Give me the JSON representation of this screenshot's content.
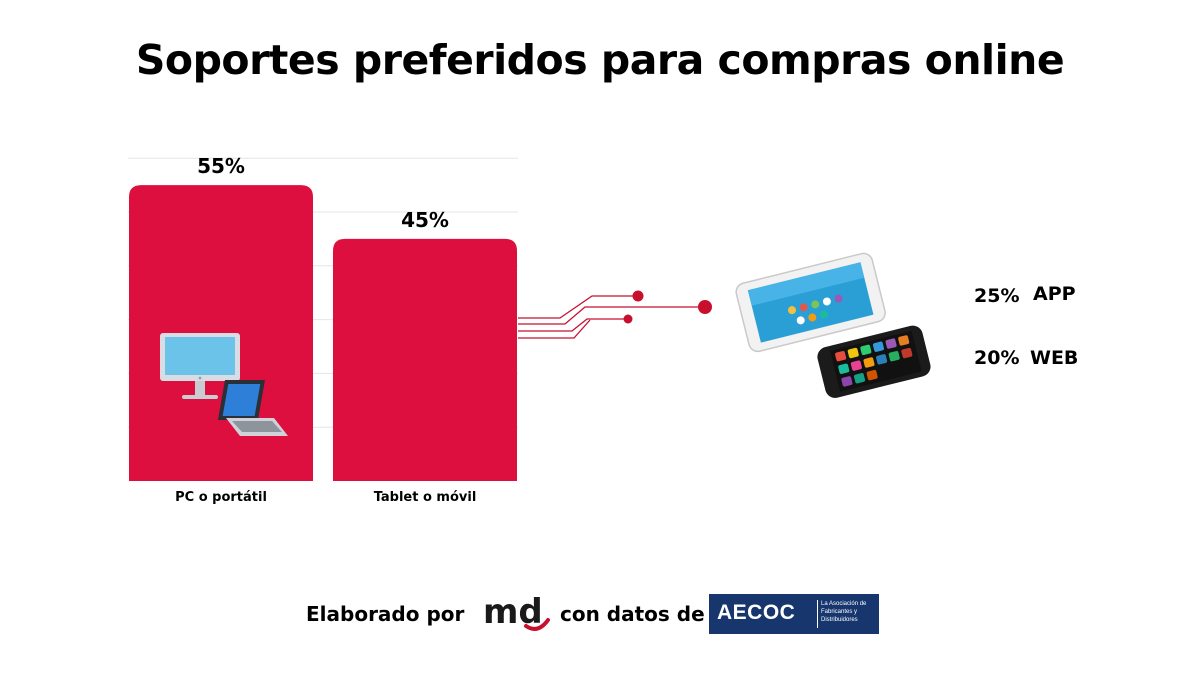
{
  "colors": {
    "bar": "#dc0f3f",
    "connector": "#c8102e",
    "text": "#000000",
    "grid": "#e6e6e6",
    "aecoc_bg": "#16366d"
  },
  "chart_data": {
    "type": "bar",
    "title": "Soportes preferidos para compras online",
    "categories": [
      "PC o portátil",
      "Tablet o móvil"
    ],
    "values": [
      55,
      45
    ],
    "value_labels": [
      "55%",
      "45%"
    ],
    "ylim": [
      0,
      60
    ],
    "grid": true,
    "icons": [
      "desktop-laptop-icon",
      "tablet-smartphone-icon"
    ],
    "breakdown": {
      "parent": "Tablet o móvil",
      "items": [
        {
          "value": 25,
          "value_label": "25%",
          "label": "APP"
        },
        {
          "value": 20,
          "value_label": "20%",
          "label": "WEB"
        }
      ]
    }
  },
  "footer": {
    "made_by": "Elaborado por",
    "with_data": "con datos de",
    "md_logo_text": "md",
    "aecoc_name": "AECOC",
    "aecoc_tagline": "La Asociación de Fabricantes y Distribuidores"
  }
}
